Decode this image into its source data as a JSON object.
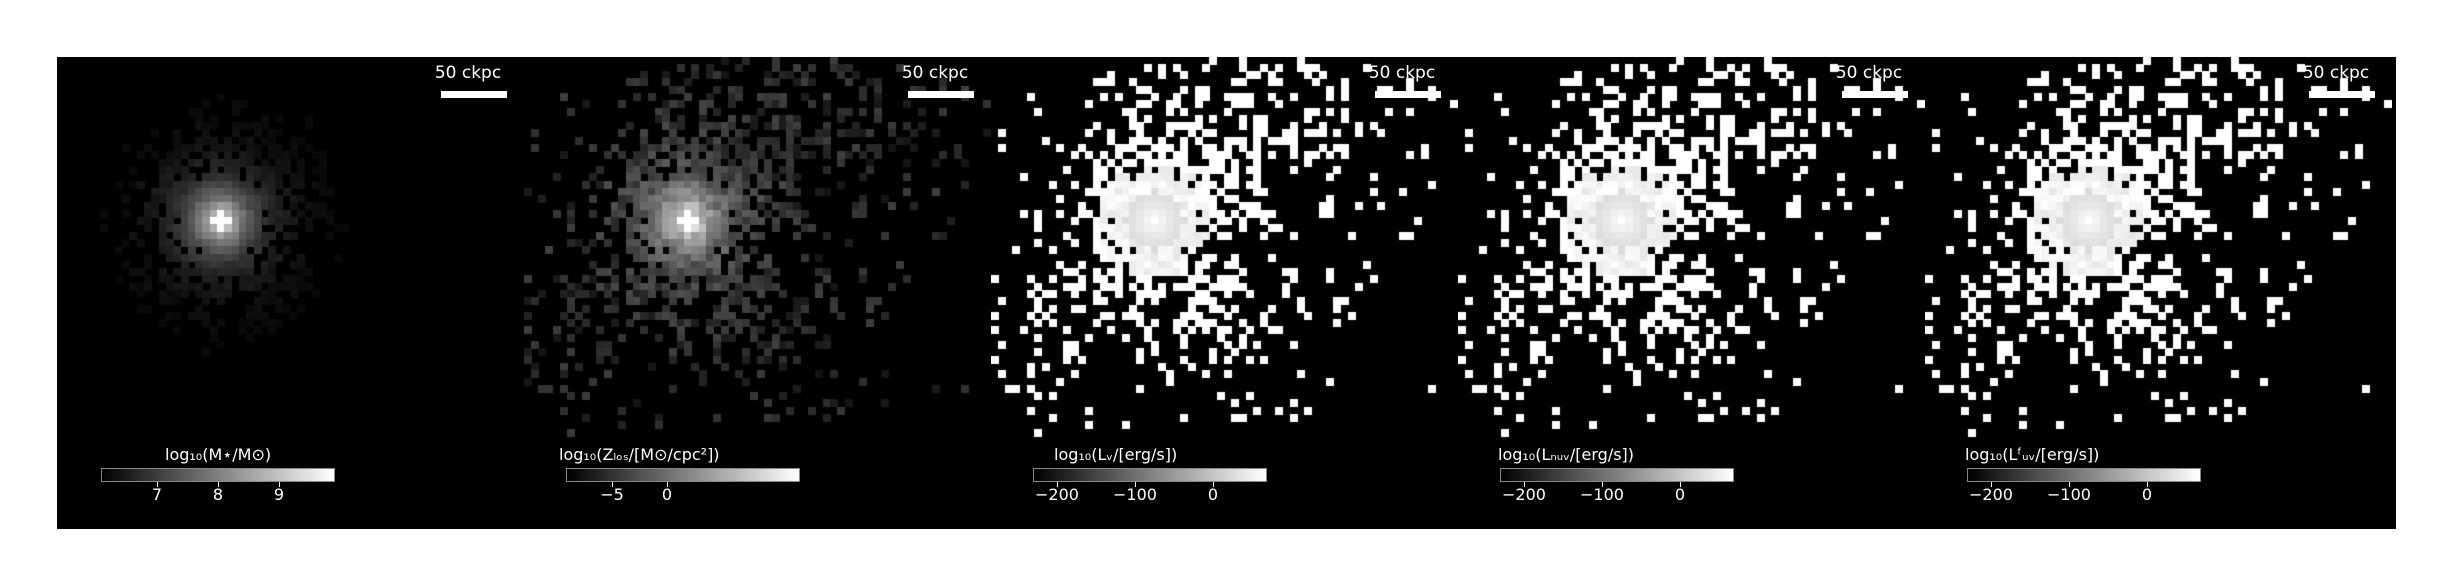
{
  "panels": [
    {
      "scalebar": "50 ckpc",
      "colorbar_label": "log₁₀(M⋆/M⊙)",
      "ticks": [
        "7",
        "8",
        "9"
      ],
      "style": "faint"
    },
    {
      "scalebar": "50 ckpc",
      "colorbar_label": "log₁₀(Zₗₒₛ/[M⊙/cpc²])",
      "ticks": [
        "−5",
        "0"
      ],
      "style": "metal"
    },
    {
      "scalebar": "50 ckpc",
      "colorbar_label": "log₁₀(Lᵥ/[erg/s])",
      "ticks": [
        "−200",
        "−100",
        "0"
      ],
      "style": "binary"
    },
    {
      "scalebar": "50 ckpc",
      "colorbar_label": "log₁₀(Lₙᵤᵥ/[erg/s])",
      "ticks": [
        "−200",
        "−100",
        "0"
      ],
      "style": "binary"
    },
    {
      "scalebar": "50 ckpc",
      "colorbar_label": "log₁₀(Lᶠᵤᵥ/[erg/s])",
      "ticks": [
        "−200",
        "−100",
        "0"
      ],
      "style": "binary"
    }
  ]
}
